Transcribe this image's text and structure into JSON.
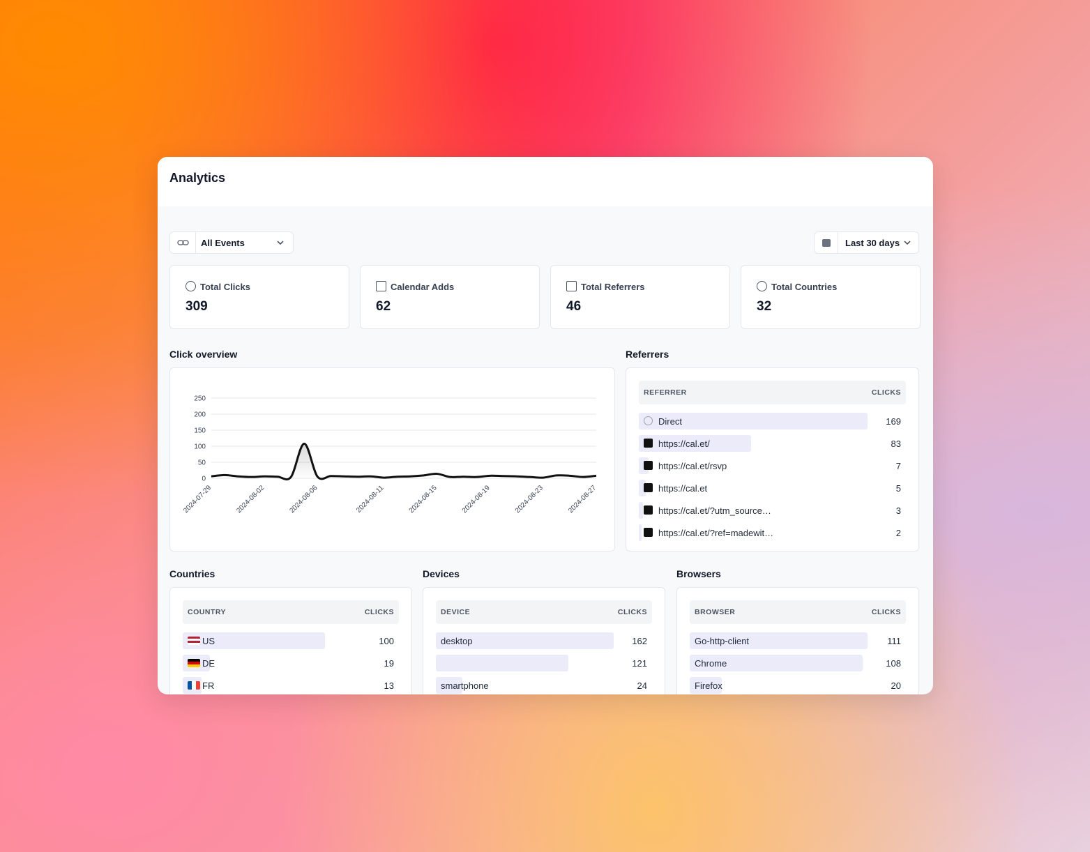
{
  "header": {
    "title": "Analytics"
  },
  "filters": {
    "event": "All Events",
    "range": "Last 30 days"
  },
  "stats": [
    {
      "label": "Total Clicks",
      "value": 309
    },
    {
      "label": "Calendar Adds",
      "value": 62
    },
    {
      "label": "Total Referrers",
      "value": 46
    },
    {
      "label": "Total Countries",
      "value": 32
    }
  ],
  "chart_data": {
    "type": "line",
    "title": "Click overview",
    "categories": [
      "2024-07-29",
      null,
      null,
      null,
      "2024-08-02",
      null,
      null,
      null,
      "2024-08-06",
      null,
      null,
      null,
      null,
      "2024-08-11",
      null,
      null,
      null,
      "2024-08-15",
      null,
      null,
      null,
      "2024-08-19",
      null,
      null,
      null,
      "2024-08-23",
      null,
      null,
      null,
      "2024-08-27"
    ],
    "values": [
      6,
      10,
      6,
      4,
      6,
      5,
      4,
      108,
      5,
      7,
      6,
      5,
      6,
      2,
      5,
      6,
      9,
      14,
      4,
      5,
      4,
      8,
      7,
      6,
      4,
      2,
      9,
      8,
      4,
      8
    ],
    "color": "#111111",
    "ylim": [
      0,
      250
    ],
    "yticks": [
      0,
      50,
      100,
      150,
      200,
      250
    ],
    "grid": true
  },
  "referrers": {
    "title": "Referrers",
    "columns": [
      "REFERRER",
      "CLICKS"
    ],
    "rows": [
      {
        "name": "Direct",
        "clicks": 169
      },
      {
        "name": "https://cal.et/",
        "clicks": 83
      },
      {
        "name": "https://cal.et/rsvp",
        "clicks": 7
      },
      {
        "name": "https://cal.et",
        "clicks": 5
      },
      {
        "name": "https://cal.et/?utm_source…",
        "clicks": 3
      },
      {
        "name": "https://cal.et/?ref=madewit…",
        "clicks": 2
      }
    ]
  },
  "countries": {
    "title": "Countries",
    "columns": [
      "COUNTRY",
      "CLICKS"
    ],
    "rows": [
      {
        "name": "US",
        "clicks": 100
      },
      {
        "name": "DE",
        "clicks": 19
      },
      {
        "name": "FR",
        "clicks": 13
      }
    ]
  },
  "devices": {
    "title": "Devices",
    "columns": [
      "DEVICE",
      "CLICKS"
    ],
    "rows": [
      {
        "name": "desktop",
        "clicks": 162
      },
      {
        "name": null,
        "clicks": 121
      },
      {
        "name": "smartphone",
        "clicks": 24
      }
    ]
  },
  "browsers": {
    "title": "Browsers",
    "columns": [
      "BROWSER",
      "CLICKS"
    ],
    "rows": [
      {
        "name": "Go-http-client",
        "clicks": 111
      },
      {
        "name": "Chrome",
        "clicks": 108
      },
      {
        "name": "Firefox",
        "clicks": 20
      }
    ]
  }
}
